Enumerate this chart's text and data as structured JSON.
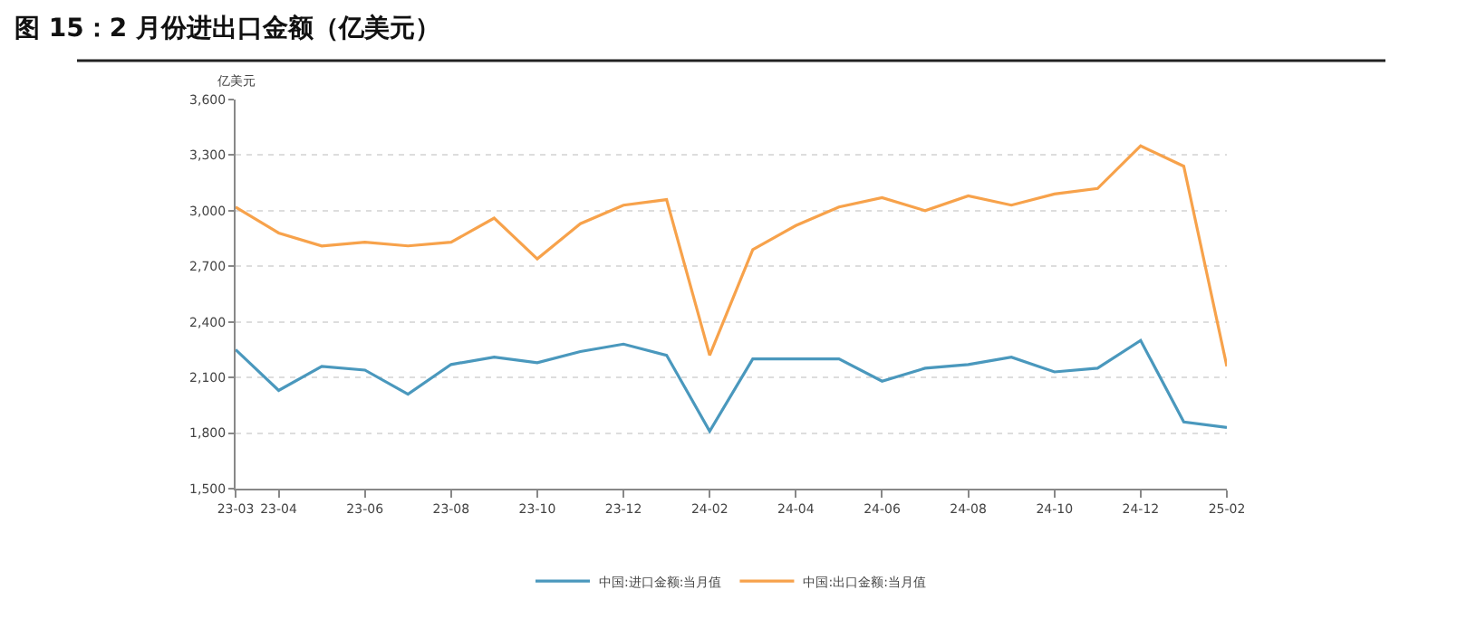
{
  "chart_data": {
    "type": "line",
    "title": "图 15：2 月份进出口金额（亿美元）",
    "ylabel": "亿美元",
    "categories": [
      "23-03",
      "23-04",
      null,
      "23-06",
      null,
      "23-08",
      null,
      "23-10",
      null,
      "23-12",
      null,
      "24-02",
      null,
      "24-04",
      null,
      "24-06",
      null,
      "24-08",
      null,
      "24-10",
      null,
      "24-12",
      null,
      "25-02"
    ],
    "series": [
      {
        "name": "中国:进口金额:当月值",
        "color": "#4a98bd",
        "values": [
          2250,
          2030,
          2160,
          2140,
          2010,
          2170,
          2210,
          2180,
          2240,
          2280,
          2220,
          1810,
          2200,
          2200,
          2200,
          2080,
          2150,
          2170,
          2210,
          2130,
          2150,
          2300,
          1860,
          1830
        ]
      },
      {
        "name": "中国:出口金额:当月值",
        "color": "#f7a24b",
        "values": [
          3020,
          2880,
          2810,
          2830,
          2810,
          2830,
          2960,
          2740,
          2930,
          3030,
          3060,
          2220,
          2790,
          2920,
          3020,
          3070,
          3000,
          3080,
          3030,
          3090,
          3120,
          3350,
          3240,
          2160
        ]
      }
    ],
    "ylim": [
      1500,
      3600
    ],
    "yticks": [
      {
        "value": 1500,
        "label": "1,500"
      },
      {
        "value": 1800,
        "label": "1,800"
      },
      {
        "value": 2100,
        "label": "2,100"
      },
      {
        "value": 2400,
        "label": "2,400"
      },
      {
        "value": 2700,
        "label": "2,700"
      },
      {
        "value": 3000,
        "label": "3,000"
      },
      {
        "value": 3300,
        "label": "3,300"
      },
      {
        "value": 3600,
        "label": "3,600"
      }
    ],
    "grid": "y",
    "legend": "bottom",
    "marker": "none",
    "line_style": "solid"
  }
}
